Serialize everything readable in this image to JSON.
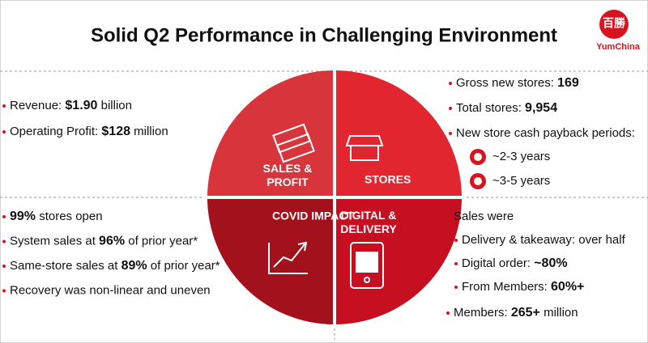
{
  "header": {
    "title": "Solid Q2 Performance in Challenging Environment",
    "logo_chars": "百勝",
    "logo_text": "YumChina"
  },
  "quadrants": [
    {
      "label_lines": [
        "SALES &",
        "PROFIT"
      ]
    },
    {
      "label_lines": [
        "STORES"
      ]
    },
    {
      "label_lines": [
        "COVID IMPACT"
      ]
    },
    {
      "label_lines": [
        "DIGITAL &",
        "DELIVERY"
      ]
    }
  ],
  "sales_profit": {
    "bullets": [
      [
        {
          "text": "Revenue: ",
          "bold": false
        },
        {
          "text": "$1.90",
          "bold": true
        },
        {
          "text": " billion",
          "bold": false
        }
      ],
      [
        {
          "text": "Operating Profit: ",
          "bold": false
        },
        {
          "text": "$128",
          "bold": true
        },
        {
          "text": " million",
          "bold": false
        }
      ]
    ]
  },
  "stores": {
    "bullets": [
      [
        {
          "text": "Gross new stores: ",
          "bold": false
        },
        {
          "text": "169",
          "bold": true
        }
      ],
      [
        {
          "text": "Total stores: ",
          "bold": false
        },
        {
          "text": "9,954",
          "bold": true
        }
      ],
      [
        {
          "text": "New store cash payback periods:",
          "bold": false
        }
      ]
    ],
    "payback": [
      "~2-3 years",
      "~3-5 years"
    ]
  },
  "covid": {
    "bullets": [
      [
        {
          "text": "99%",
          "bold": true
        },
        {
          "text": " stores open",
          "bold": false
        }
      ],
      [
        {
          "text": "System sales at ",
          "bold": false
        },
        {
          "text": "96%",
          "bold": true
        },
        {
          "text": " of prior year*",
          "bold": false
        }
      ],
      [
        {
          "text": "Same-store sales at ",
          "bold": false
        },
        {
          "text": "89%",
          "bold": true
        },
        {
          "text": " of prior year*",
          "bold": false
        }
      ],
      [
        {
          "text": "Recovery was non-linear and uneven",
          "bold": false
        }
      ]
    ]
  },
  "digital": {
    "intro": "Sales were",
    "sub_bullets": [
      [
        {
          "text": "Delivery & takeaway: over half",
          "bold": false
        }
      ],
      [
        {
          "text": "Digital order: ",
          "bold": false
        },
        {
          "text": "~80%",
          "bold": true
        }
      ],
      [
        {
          "text": "From Members: ",
          "bold": false
        },
        {
          "text": "60%+",
          "bold": true
        }
      ]
    ],
    "bullets": [
      [
        {
          "text": "Members: ",
          "bold": false
        },
        {
          "text": "265+",
          "bold": true
        },
        {
          "text": " million",
          "bold": false
        }
      ]
    ]
  }
}
